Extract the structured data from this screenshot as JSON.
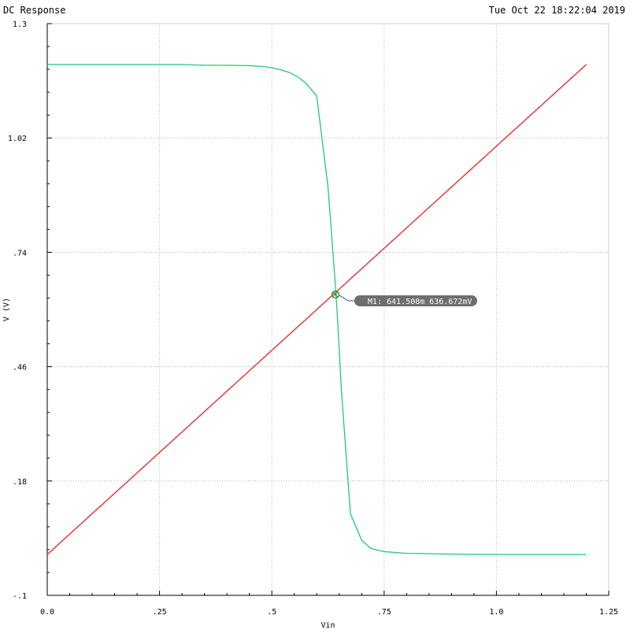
{
  "window": {
    "title": "DC Response",
    "timestamp": "Tue Oct 22 18:22:04 2019"
  },
  "marker": {
    "label": "M1: 641.508m 636.672mV",
    "x": 0.6415,
    "y": 0.6367,
    "color": "#6e6e6e"
  },
  "chart_data": {
    "type": "line",
    "title": "DC Response",
    "xlabel": "Vin",
    "ylabel": "V (V)",
    "xlim": [
      0,
      1.25
    ],
    "ylim": [
      -0.1,
      1.3
    ],
    "x_ticks": [
      0,
      0.25,
      0.5,
      0.75,
      1.0,
      1.25
    ],
    "x_tick_labels": [
      "0.0",
      ".25",
      ".5",
      ".75",
      "1.0",
      "1.25"
    ],
    "y_ticks": [
      -0.1,
      0.18,
      0.46,
      0.74,
      1.02,
      1.3
    ],
    "y_tick_labels": [
      "-.1",
      ".18",
      ".46",
      ".74",
      "1.02",
      "1.3"
    ],
    "grid": true,
    "series": [
      {
        "color": "#ee2020",
        "x": [
          0,
          1.2
        ],
        "y": [
          0.0,
          1.2
        ]
      },
      {
        "color": "#20c878",
        "x": [
          0,
          0.1,
          0.2,
          0.3,
          0.35,
          0.4,
          0.45,
          0.48,
          0.5,
          0.52,
          0.54,
          0.56,
          0.575,
          0.6,
          0.625,
          0.64,
          0.645,
          0.655,
          0.675,
          0.7,
          0.72,
          0.75,
          0.8,
          0.9,
          1.0,
          1.1,
          1.2
        ],
        "y": [
          1.2,
          1.2,
          1.2,
          1.2,
          1.198,
          1.198,
          1.197,
          1.195,
          1.192,
          1.187,
          1.18,
          1.168,
          1.155,
          1.123,
          0.9,
          0.68,
          0.6,
          0.4,
          0.1,
          0.035,
          0.015,
          0.007,
          0.003,
          0.001,
          0.0,
          0.0,
          0.0
        ]
      }
    ]
  }
}
